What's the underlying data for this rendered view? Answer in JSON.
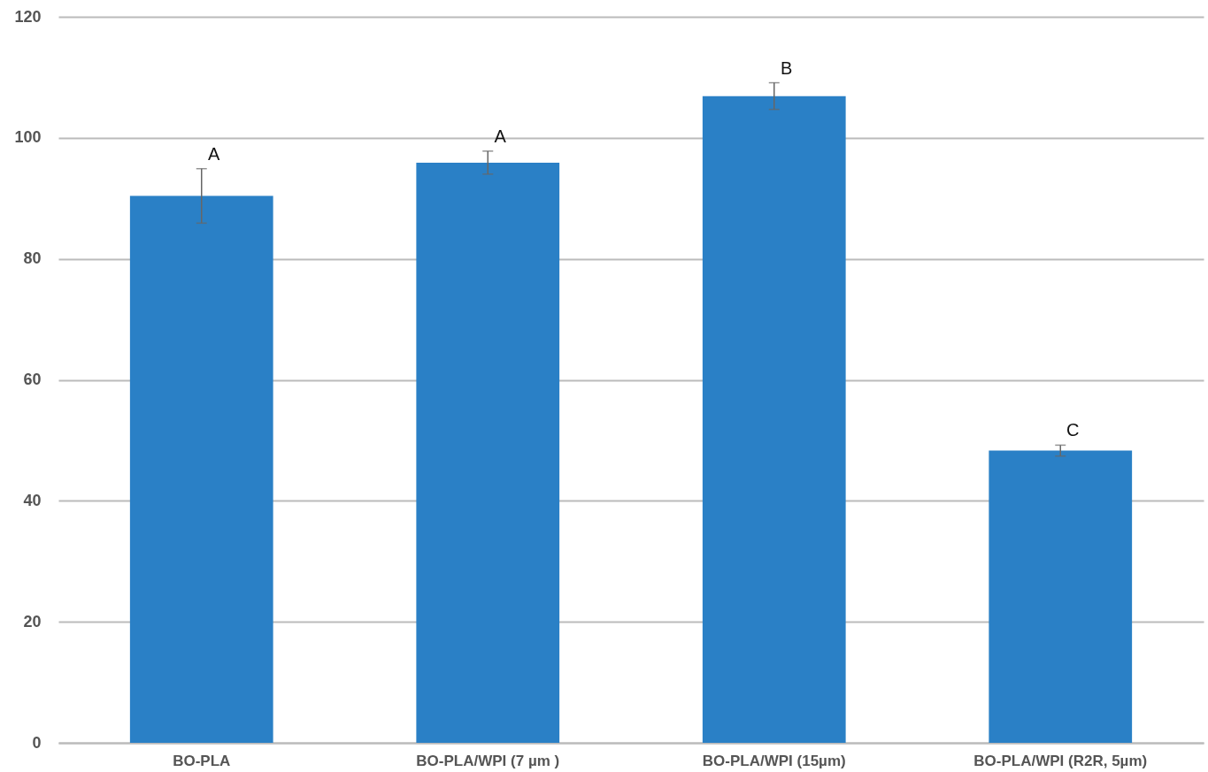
{
  "chart_data": {
    "type": "bar",
    "categories": [
      "BO-PLA",
      "BO-PLA/WPI (7 µm )",
      "BO-PLA/WPI (15µm)",
      "BO-PLA/WPI (R2R, 5µm)"
    ],
    "values": [
      90.4,
      95.9,
      106.9,
      48.3
    ],
    "errors": [
      4.5,
      1.9,
      2.2,
      0.9
    ],
    "color": "#2a80c6",
    "ylim": [
      0,
      120
    ],
    "yticks": [
      0,
      20,
      40,
      60,
      80,
      100,
      120
    ],
    "grid": "y",
    "annotations": [
      {
        "text": "A",
        "x": "BO-PLA",
        "y": 94.9
      },
      {
        "text": "A",
        "x": "BO-PLA/WPI (7 µm )",
        "y": 97.8
      },
      {
        "text": "B",
        "x": "BO-PLA/WPI (15µm)",
        "y": 109.1
      },
      {
        "text": "C",
        "x": "BO-PLA/WPI (R2R, 5µm)",
        "y": 49.2
      }
    ]
  }
}
